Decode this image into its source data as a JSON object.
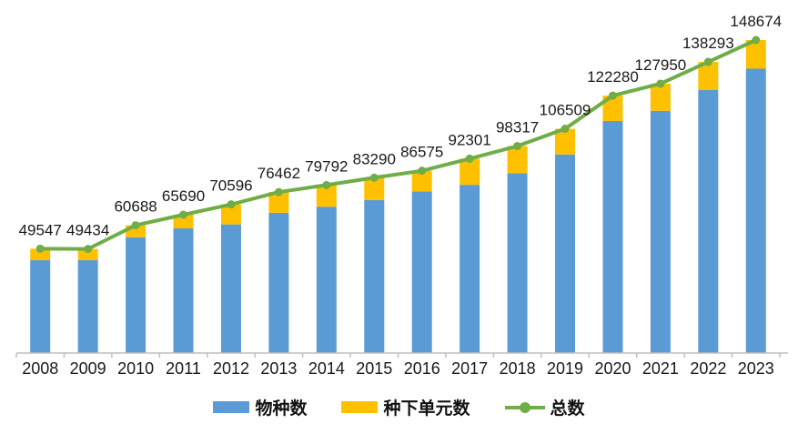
{
  "chart_data": {
    "type": "bar",
    "subtype": "stacked-bars-with-total-line",
    "title": "",
    "xlabel": "",
    "ylabel": "",
    "categories": [
      "2008",
      "2009",
      "2010",
      "2011",
      "2012",
      "2013",
      "2014",
      "2015",
      "2016",
      "2017",
      "2018",
      "2019",
      "2020",
      "2021",
      "2022",
      "2023"
    ],
    "series": [
      {
        "name": "物种数",
        "type": "bar",
        "color": "#5B9BD5",
        "values": [
          44100,
          44100,
          55000,
          59200,
          61100,
          66600,
          69500,
          72700,
          76700,
          79900,
          85400,
          94300,
          110231,
          115064,
          125034,
          135061
        ]
      },
      {
        "name": "种下单元数",
        "type": "bar",
        "color": "#FFC000",
        "values": [
          5447,
          5334,
          5688,
          6490,
          9496,
          9862,
          10292,
          10590,
          9875,
          12401,
          12917,
          12209,
          12049,
          12886,
          13259,
          13613
        ]
      },
      {
        "name": "总数",
        "type": "line",
        "color": "#70AD47",
        "values": [
          49547,
          49434,
          60688,
          65690,
          70596,
          76462,
          79792,
          83290,
          86575,
          92301,
          98317,
          106509,
          122280,
          127950,
          138293,
          148674
        ]
      }
    ],
    "data_labels": [
      "49547",
      "49434",
      "60688",
      "65690",
      "70596",
      "76462",
      "79792",
      "83290",
      "86575",
      "92301",
      "98317",
      "106509",
      "122280",
      "127950",
      "138293",
      "148674"
    ],
    "ylim": [
      0,
      155000
    ],
    "grid": false,
    "y_axis_visible": false,
    "legend_position": "bottom",
    "axis_color": "#BFBFBF",
    "label_color": "#1a1a1a"
  }
}
